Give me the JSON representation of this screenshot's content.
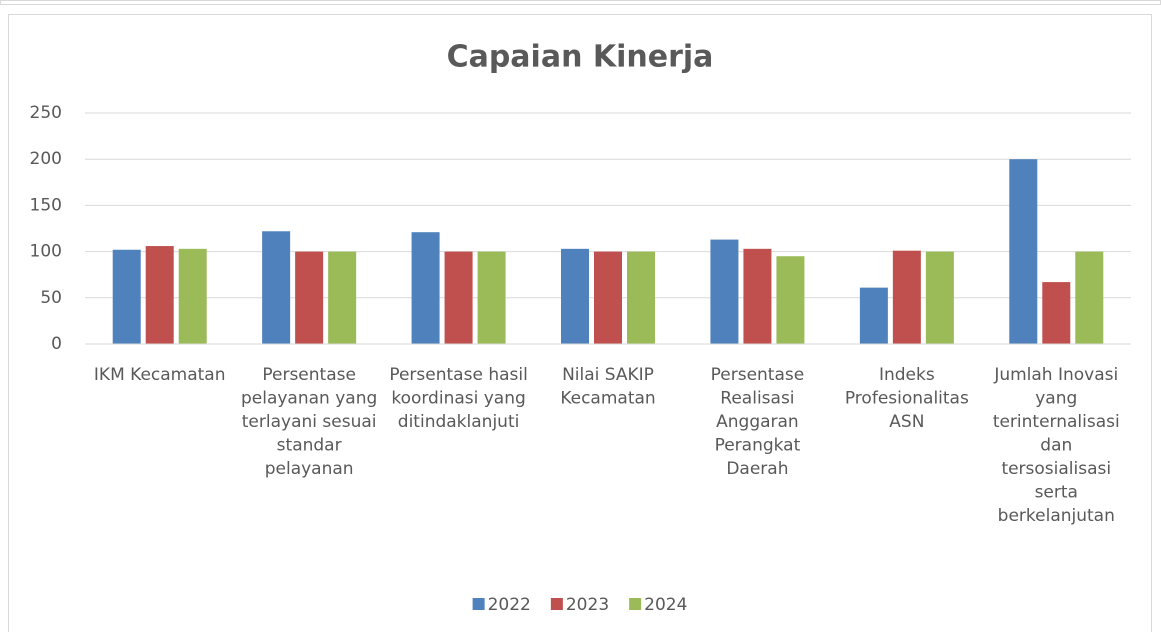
{
  "chart_data": {
    "type": "bar",
    "title": "Capaian Kinerja",
    "categories": [
      "IKM Kecamatan",
      "Persentase pelayanan yang terlayani sesuai standar pelayanan",
      "Persentase hasil koordinasi yang ditindaklanjuti",
      "Nilai SAKIP Kecamatan",
      "Persentase Realisasi Anggaran Perangkat Daerah",
      "Indeks Profesionalitas ASN",
      "Jumlah Inovasi yang terinternalisasi dan tersosialisasi serta berkelanjutan"
    ],
    "series": [
      {
        "name": "2022",
        "color": "#4f81bd",
        "values": [
          102,
          122,
          121,
          103,
          113,
          61,
          200
        ]
      },
      {
        "name": "2023",
        "color": "#c0504d",
        "values": [
          106,
          100,
          100,
          100,
          103,
          101,
          67
        ]
      },
      {
        "name": "2024",
        "color": "#9bbb59",
        "values": [
          103,
          100,
          100,
          100,
          95,
          100,
          100
        ]
      }
    ],
    "ylim": [
      0,
      250
    ],
    "yticks": [
      0,
      50,
      100,
      150,
      200,
      250
    ],
    "grid": true,
    "legend": "bottom"
  }
}
